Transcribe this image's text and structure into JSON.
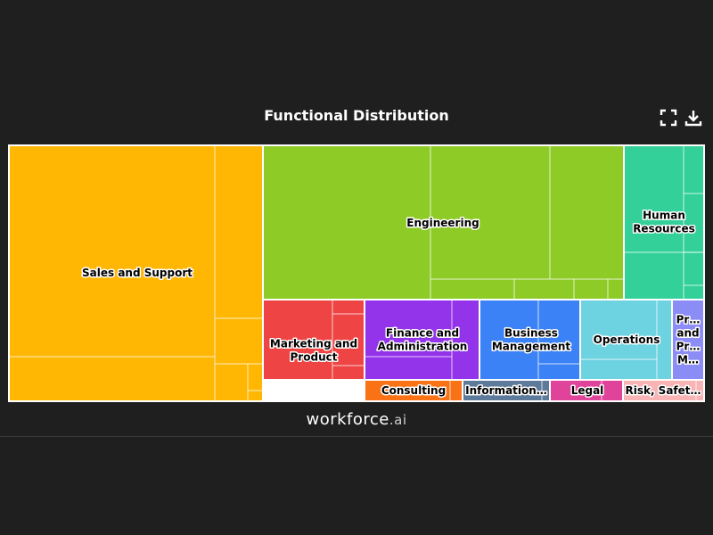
{
  "header": {
    "title": "Functional Distribution",
    "fullscreen_icon": "fullscreen-icon",
    "download_icon": "download-icon"
  },
  "footer": {
    "brand": "workforce",
    "brand_suffix": ".ai"
  },
  "chart_data": {
    "type": "treemap",
    "title": "Functional Distribution",
    "categories": [
      {
        "label": "Sales and Support",
        "value": 36.0,
        "color": "#ffb703"
      },
      {
        "label": "Engineering",
        "value": 24.4,
        "color": "#8ecb27"
      },
      {
        "label": "Human Resources",
        "value": 7.3,
        "color": "#33d09a"
      },
      {
        "label": "Marketing and Product",
        "value": 4.3,
        "color": "#ef4444"
      },
      {
        "label": "Finance and Administration",
        "value": 4.6,
        "color": "#9333ea"
      },
      {
        "label": "Business Management",
        "value": 3.8,
        "color": "#3b82f6"
      },
      {
        "label": "Operations",
        "value": 3.7,
        "color": "#6dd3e0"
      },
      {
        "label": "Pr… and Pr… M…",
        "value": 1.0,
        "color": "#8b8cf5"
      },
      {
        "label": "Consulting",
        "value": 1.2,
        "color": "#f97316"
      },
      {
        "label": "Information…",
        "value": 1.3,
        "color": "#5e7a9a"
      },
      {
        "label": "Legal",
        "value": 1.0,
        "color": "#e0439a"
      },
      {
        "label": "Risk, Safet…",
        "value": 1.0,
        "color": "#f8b4b4"
      }
    ]
  }
}
